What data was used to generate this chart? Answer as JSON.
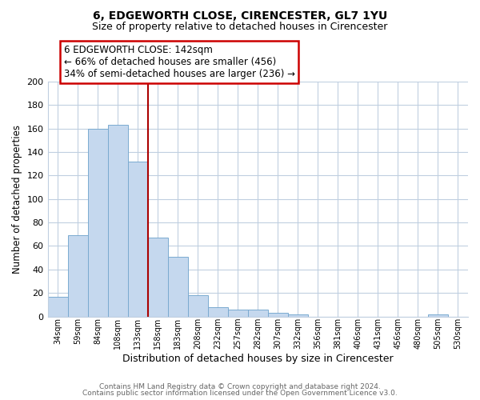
{
  "title": "6, EDGEWORTH CLOSE, CIRENCESTER, GL7 1YU",
  "subtitle": "Size of property relative to detached houses in Cirencester",
  "xlabel": "Distribution of detached houses by size in Cirencester",
  "ylabel": "Number of detached properties",
  "bin_labels": [
    "34sqm",
    "59sqm",
    "84sqm",
    "108sqm",
    "133sqm",
    "158sqm",
    "183sqm",
    "208sqm",
    "232sqm",
    "257sqm",
    "282sqm",
    "307sqm",
    "332sqm",
    "356sqm",
    "381sqm",
    "406sqm",
    "431sqm",
    "456sqm",
    "480sqm",
    "505sqm",
    "530sqm"
  ],
  "bar_heights": [
    17,
    69,
    160,
    163,
    132,
    67,
    51,
    18,
    8,
    6,
    6,
    3,
    2,
    0,
    0,
    0,
    0,
    0,
    0,
    2,
    0
  ],
  "bar_color": "#c5d8ee",
  "bar_edge_color": "#7aaad0",
  "vline_color": "#aa0000",
  "annotation_title": "6 EDGEWORTH CLOSE: 142sqm",
  "annotation_line1": "← 66% of detached houses are smaller (456)",
  "annotation_line2": "34% of semi-detached houses are larger (236) →",
  "annotation_box_color": "#ffffff",
  "annotation_box_edge": "#cc0000",
  "ylim": [
    0,
    200
  ],
  "yticks": [
    0,
    20,
    40,
    60,
    80,
    100,
    120,
    140,
    160,
    180,
    200
  ],
  "footer1": "Contains HM Land Registry data © Crown copyright and database right 2024.",
  "footer2": "Contains public sector information licensed under the Open Government Licence v3.0.",
  "bg_color": "#ffffff",
  "grid_color": "#c0cfe0"
}
